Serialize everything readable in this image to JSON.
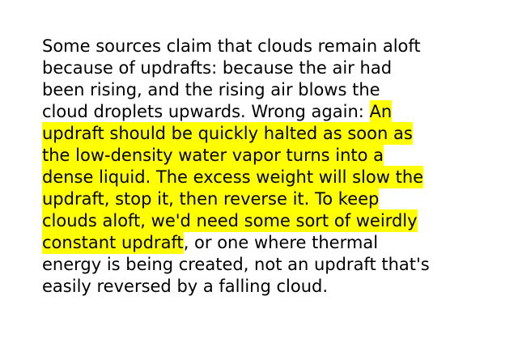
{
  "document": {
    "highlight_color": "#ffff00",
    "lines": [
      {
        "before": "Some sources claim that clouds remain aloft",
        "highlight": "",
        "after": ""
      },
      {
        "before": "because of updrafts: because the air had",
        "highlight": "",
        "after": ""
      },
      {
        "before": "been rising, and the rising air blows the",
        "highlight": "",
        "after": ""
      },
      {
        "before": "cloud droplets upwards. Wrong again: ",
        "highlight": "An",
        "after": ""
      },
      {
        "before": "",
        "highlight": "updraft should be quickly halted as soon as",
        "after": ""
      },
      {
        "before": "",
        "highlight": "the low-density water vapor turns into a",
        "after": ""
      },
      {
        "before": "",
        "highlight": "dense liquid. The excess weight will slow the",
        "after": ""
      },
      {
        "before": "",
        "highlight": "updraft, stop it, then reverse it. To keep",
        "after": ""
      },
      {
        "before": "",
        "highlight": "clouds aloft, we'd need some sort of weirdly",
        "after": ""
      },
      {
        "before": "",
        "highlight": "constant updraft",
        "after": ", or one where thermal"
      },
      {
        "before": "energy is being created, not an updraft that's",
        "highlight": "",
        "after": ""
      },
      {
        "before": "easily reversed by a falling cloud.",
        "highlight": "",
        "after": ""
      }
    ]
  }
}
